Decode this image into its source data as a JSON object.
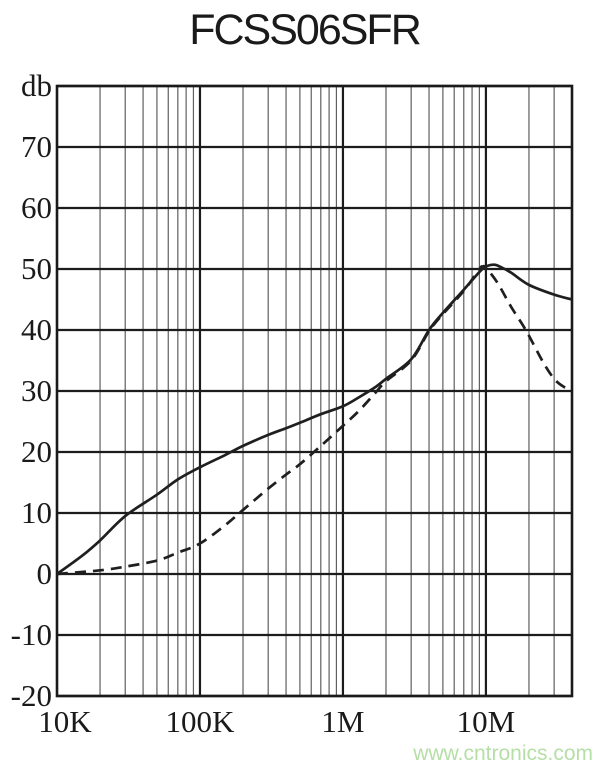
{
  "title": "FCSS06SFR",
  "watermark": {
    "text": "www.cntronics.com",
    "color": "#b5dfa6"
  },
  "colors": {
    "curve": "#1f1f1f",
    "major_grid": "#1c1c1c",
    "minor_grid": "#5f5f5f",
    "frame": "#1a1a1a",
    "text": "#1a1a1a"
  },
  "chart_data": {
    "type": "line",
    "title": "FCSS06SFR",
    "xlabel": "",
    "ylabel": "db",
    "x_axis": {
      "scale": "log",
      "min": 10000,
      "max": 40000000,
      "tick_values": [
        10000,
        100000,
        1000000,
        10000000
      ],
      "tick_labels": [
        "10K",
        "100K",
        "1M",
        "10M"
      ],
      "minor_gridlines": "log 2-9 per decade"
    },
    "y_axis": {
      "unit_label": "db",
      "min": -20,
      "max": 80,
      "tick_step": 10,
      "tick_values": [
        80,
        70,
        60,
        50,
        40,
        30,
        20,
        10,
        0,
        -10,
        -20
      ],
      "tick_labels": [
        "db",
        "70",
        "60",
        "50",
        "40",
        "30",
        "20",
        "10",
        "0",
        "-10",
        "-20"
      ]
    },
    "grid": {
      "horizontal": "every 10 db",
      "vertical": "log decades + minors",
      "legend": "none"
    },
    "series": [
      {
        "name": "solid-gain-curve",
        "style": "solid",
        "points": [
          [
            10000,
            0
          ],
          [
            15000,
            3
          ],
          [
            20000,
            5.5
          ],
          [
            30000,
            9.5
          ],
          [
            50000,
            13
          ],
          [
            70000,
            15.5
          ],
          [
            100000,
            17.5
          ],
          [
            150000,
            19.5
          ],
          [
            200000,
            21
          ],
          [
            300000,
            22.8
          ],
          [
            400000,
            23.9
          ],
          [
            500000,
            24.8
          ],
          [
            700000,
            26.2
          ],
          [
            1000000,
            27.5
          ],
          [
            1300000,
            29
          ],
          [
            1700000,
            30.7
          ],
          [
            2000000,
            32
          ],
          [
            3000000,
            35.2
          ],
          [
            4000000,
            40
          ],
          [
            5000000,
            42.8
          ],
          [
            7000000,
            46.6
          ],
          [
            9000000,
            49.5
          ],
          [
            10000000,
            50.4
          ],
          [
            11500000,
            50.7
          ],
          [
            13000000,
            50.2
          ],
          [
            15000000,
            49.4
          ],
          [
            20000000,
            47.4
          ],
          [
            30000000,
            45.8
          ],
          [
            40000000,
            45
          ]
        ]
      },
      {
        "name": "dashed-gain-curve",
        "style": "dashed",
        "points": [
          [
            10000,
            0
          ],
          [
            20000,
            0.6
          ],
          [
            30000,
            1.2
          ],
          [
            50000,
            2.2
          ],
          [
            70000,
            3.5
          ],
          [
            100000,
            5
          ],
          [
            150000,
            8
          ],
          [
            200000,
            10.5
          ],
          [
            300000,
            14
          ],
          [
            400000,
            16.3
          ],
          [
            500000,
            18
          ],
          [
            700000,
            21
          ],
          [
            1000000,
            24.3
          ],
          [
            1300000,
            26.8
          ],
          [
            1700000,
            29.8
          ],
          [
            2000000,
            31.6
          ],
          [
            3000000,
            35
          ],
          [
            4000000,
            39.8
          ],
          [
            5000000,
            42.6
          ],
          [
            7000000,
            46.4
          ],
          [
            9000000,
            50
          ],
          [
            9500000,
            50.4
          ],
          [
            10000000,
            50.2
          ],
          [
            12000000,
            47.8
          ],
          [
            15000000,
            43.8
          ],
          [
            19000000,
            40
          ],
          [
            25000000,
            34.8
          ],
          [
            30000000,
            32
          ],
          [
            35000000,
            30.7
          ],
          [
            40000000,
            30.2
          ]
        ]
      }
    ]
  }
}
